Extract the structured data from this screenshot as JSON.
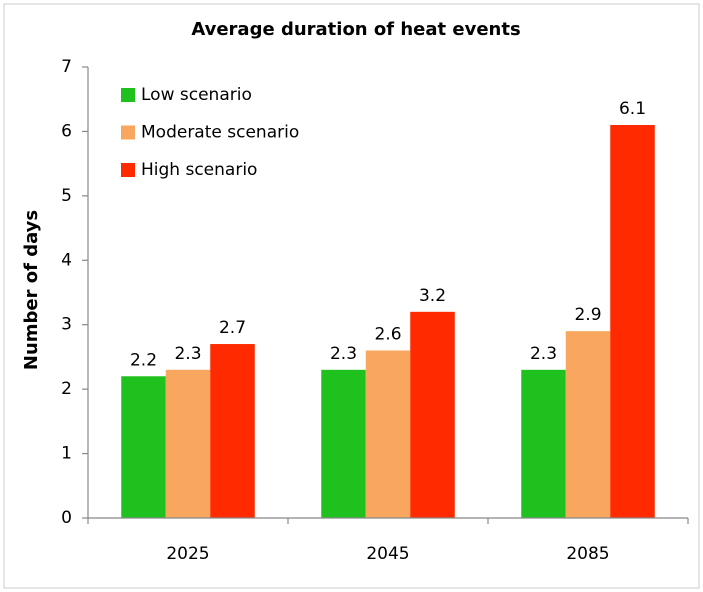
{
  "chart_data": {
    "type": "bar",
    "title": "Average duration of heat events",
    "y_label": "Number of days",
    "categories": [
      "2025",
      "2045",
      "2085"
    ],
    "series": [
      {
        "name": "Low scenario",
        "color": "#1fc11f",
        "values": [
          2.2,
          2.3,
          2.3
        ]
      },
      {
        "name": "Moderate scenario",
        "color": "#f9a75e",
        "values": [
          2.3,
          2.6,
          2.9
        ]
      },
      {
        "name": "High scenario",
        "color": "#ff2a00",
        "values": [
          2.7,
          3.2,
          6.1
        ]
      }
    ],
    "ylim": [
      0,
      7
    ],
    "yticks": [
      0,
      1,
      2,
      3,
      4,
      5,
      6,
      7
    ],
    "grid": false,
    "legend": "top-left"
  }
}
